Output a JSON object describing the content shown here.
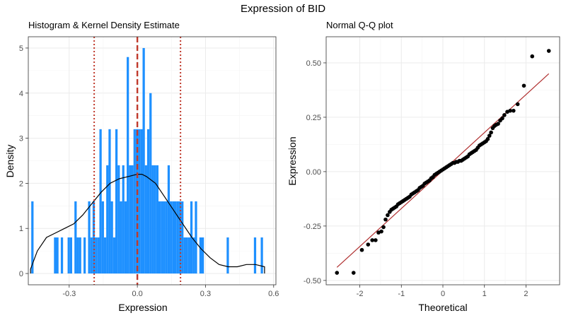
{
  "figure": {
    "title": "Expression of BID"
  },
  "chart_data": [
    {
      "type": "bar",
      "title": "Histogram & Kernel Density Estimate",
      "xlabel": "Expression",
      "ylabel": "Density",
      "xlim": [
        -0.48,
        0.61
      ],
      "ylim": [
        -0.25,
        5.25
      ],
      "xticks": [
        -0.3,
        0.0,
        0.3,
        0.6
      ],
      "xtick_labels": [
        "-0.3",
        "0.0",
        "0.3",
        "0.6"
      ],
      "yticks": [
        0,
        1,
        2,
        3,
        4,
        5
      ],
      "ytick_labels": [
        "0",
        "1",
        "2",
        "3",
        "4",
        "5"
      ],
      "grid": true,
      "bin_width": 0.0101,
      "bar_color": "#1E90FF",
      "bins": [
        {
          "x": -0.467,
          "density": 1.6
        },
        {
          "x": -0.367,
          "density": 0.8
        },
        {
          "x": -0.357,
          "density": 0.8
        },
        {
          "x": -0.337,
          "density": 0.8
        },
        {
          "x": -0.307,
          "density": 0.8
        },
        {
          "x": -0.297,
          "density": 0.8
        },
        {
          "x": -0.277,
          "density": 1.6
        },
        {
          "x": -0.267,
          "density": 0.8
        },
        {
          "x": -0.257,
          "density": 0.8
        },
        {
          "x": -0.237,
          "density": 0.8
        },
        {
          "x": -0.217,
          "density": 1.6
        },
        {
          "x": -0.207,
          "density": 0.8
        },
        {
          "x": -0.197,
          "density": 1.6
        },
        {
          "x": -0.187,
          "density": 0.8
        },
        {
          "x": -0.177,
          "density": 0.8
        },
        {
          "x": -0.167,
          "density": 3.2
        },
        {
          "x": -0.157,
          "density": 1.6
        },
        {
          "x": -0.147,
          "density": 0.8
        },
        {
          "x": -0.137,
          "density": 2.4
        },
        {
          "x": -0.127,
          "density": 3.2
        },
        {
          "x": -0.117,
          "density": 1.6
        },
        {
          "x": -0.107,
          "density": 0.8
        },
        {
          "x": -0.097,
          "density": 3.2
        },
        {
          "x": -0.087,
          "density": 2.4
        },
        {
          "x": -0.077,
          "density": 1.6
        },
        {
          "x": -0.067,
          "density": 2.4
        },
        {
          "x": -0.057,
          "density": 1.6
        },
        {
          "x": -0.047,
          "density": 4.8
        },
        {
          "x": -0.037,
          "density": 2.4
        },
        {
          "x": -0.027,
          "density": 2.4
        },
        {
          "x": -0.017,
          "density": 3.2
        },
        {
          "x": -0.007,
          "density": 3.2
        },
        {
          "x": 0.003,
          "density": 3.2
        },
        {
          "x": 0.013,
          "density": 3.2
        },
        {
          "x": 0.023,
          "density": 5.0
        },
        {
          "x": 0.033,
          "density": 2.4
        },
        {
          "x": 0.043,
          "density": 3.2
        },
        {
          "x": 0.053,
          "density": 4.0
        },
        {
          "x": 0.063,
          "density": 2.4
        },
        {
          "x": 0.073,
          "density": 2.4
        },
        {
          "x": 0.083,
          "density": 2.4
        },
        {
          "x": 0.093,
          "density": 1.6
        },
        {
          "x": 0.103,
          "density": 1.6
        },
        {
          "x": 0.113,
          "density": 1.6
        },
        {
          "x": 0.123,
          "density": 1.6
        },
        {
          "x": 0.133,
          "density": 2.4
        },
        {
          "x": 0.143,
          "density": 1.6
        },
        {
          "x": 0.153,
          "density": 1.6
        },
        {
          "x": 0.163,
          "density": 1.6
        },
        {
          "x": 0.173,
          "density": 1.6
        },
        {
          "x": 0.183,
          "density": 1.6
        },
        {
          "x": 0.193,
          "density": 1.6
        },
        {
          "x": 0.203,
          "density": 0.8
        },
        {
          "x": 0.213,
          "density": 0.8
        },
        {
          "x": 0.223,
          "density": 0.8
        },
        {
          "x": 0.233,
          "density": 1.6
        },
        {
          "x": 0.243,
          "density": 0.8
        },
        {
          "x": 0.253,
          "density": 1.6
        },
        {
          "x": 0.273,
          "density": 0.8
        },
        {
          "x": 0.283,
          "density": 0.8
        },
        {
          "x": 0.393,
          "density": 0.8
        },
        {
          "x": 0.513,
          "density": 0.8
        },
        {
          "x": 0.543,
          "density": 0.8
        }
      ],
      "kde": {
        "x": [
          -0.47,
          -0.44,
          -0.4,
          -0.36,
          -0.32,
          -0.28,
          -0.24,
          -0.2,
          -0.16,
          -0.12,
          -0.08,
          -0.04,
          0.0,
          0.02,
          0.04,
          0.08,
          0.12,
          0.16,
          0.2,
          0.24,
          0.28,
          0.32,
          0.36,
          0.4,
          0.44,
          0.48,
          0.52,
          0.56
        ],
        "y": [
          0.1,
          0.5,
          0.8,
          0.9,
          1.0,
          1.1,
          1.3,
          1.55,
          1.8,
          2.0,
          2.1,
          2.15,
          2.2,
          2.2,
          2.15,
          2.0,
          1.7,
          1.4,
          1.1,
          0.8,
          0.55,
          0.35,
          0.2,
          0.15,
          0.15,
          0.2,
          0.2,
          0.15
        ],
        "color": "#000000"
      },
      "reference_lines": [
        {
          "x": 0.0,
          "style": "dashed",
          "color": "#C0392B"
        },
        {
          "x": -0.19,
          "style": "dotted",
          "color": "#C0392B"
        },
        {
          "x": 0.19,
          "style": "dotted",
          "color": "#C0392B"
        }
      ]
    },
    {
      "type": "scatter",
      "title": "Normal Q-Q plot",
      "xlabel": "Theoretical",
      "ylabel": "Expression",
      "xlim": [
        -2.81,
        2.81
      ],
      "ylim": [
        -0.52,
        0.62
      ],
      "xticks": [
        -2,
        -1,
        0,
        1,
        2
      ],
      "xtick_labels": [
        "-2",
        "-1",
        "0",
        "1",
        "2"
      ],
      "yticks": [
        -0.5,
        -0.25,
        0.0,
        0.25,
        0.5
      ],
      "ytick_labels": [
        "-0.50",
        "-0.25",
        "0.00",
        "0.25",
        "0.50"
      ],
      "grid": true,
      "point_color": "#000000",
      "line_color": "#B03030",
      "ref_line": {
        "x": [
          -2.55,
          2.55
        ],
        "y": [
          -0.44,
          0.45
        ]
      },
      "points": [
        [
          -2.55,
          -0.465
        ],
        [
          -2.15,
          -0.465
        ],
        [
          -1.95,
          -0.36
        ],
        [
          -1.8,
          -0.335
        ],
        [
          -1.7,
          -0.315
        ],
        [
          -1.62,
          -0.315
        ],
        [
          -1.55,
          -0.28
        ],
        [
          -1.48,
          -0.275
        ],
        [
          -1.43,
          -0.255
        ],
        [
          -1.38,
          -0.22
        ],
        [
          -1.33,
          -0.2
        ],
        [
          -1.28,
          -0.185
        ],
        [
          -1.24,
          -0.175
        ],
        [
          -1.2,
          -0.17
        ],
        [
          -1.16,
          -0.165
        ],
        [
          -1.12,
          -0.16
        ],
        [
          -1.08,
          -0.15
        ],
        [
          -1.04,
          -0.145
        ],
        [
          -1.0,
          -0.14
        ],
        [
          -0.96,
          -0.135
        ],
        [
          -0.92,
          -0.13
        ],
        [
          -0.88,
          -0.125
        ],
        [
          -0.84,
          -0.12
        ],
        [
          -0.8,
          -0.115
        ],
        [
          -0.76,
          -0.105
        ],
        [
          -0.72,
          -0.1
        ],
        [
          -0.68,
          -0.095
        ],
        [
          -0.64,
          -0.09
        ],
        [
          -0.6,
          -0.085
        ],
        [
          -0.56,
          -0.075
        ],
        [
          -0.52,
          -0.07
        ],
        [
          -0.48,
          -0.065
        ],
        [
          -0.44,
          -0.055
        ],
        [
          -0.4,
          -0.05
        ],
        [
          -0.36,
          -0.045
        ],
        [
          -0.32,
          -0.04
        ],
        [
          -0.28,
          -0.03
        ],
        [
          -0.24,
          -0.025
        ],
        [
          -0.2,
          -0.015
        ],
        [
          -0.16,
          -0.01
        ],
        [
          -0.12,
          -0.005
        ],
        [
          -0.08,
          0.0
        ],
        [
          -0.04,
          0.005
        ],
        [
          0.0,
          0.01
        ],
        [
          0.04,
          0.015
        ],
        [
          0.08,
          0.02
        ],
        [
          0.12,
          0.025
        ],
        [
          0.16,
          0.03
        ],
        [
          0.2,
          0.035
        ],
        [
          0.24,
          0.04
        ],
        [
          0.28,
          0.04
        ],
        [
          0.32,
          0.045
        ],
        [
          0.36,
          0.045
        ],
        [
          0.4,
          0.05
        ],
        [
          0.44,
          0.05
        ],
        [
          0.48,
          0.055
        ],
        [
          0.52,
          0.06
        ],
        [
          0.56,
          0.065
        ],
        [
          0.6,
          0.07
        ],
        [
          0.64,
          0.08
        ],
        [
          0.68,
          0.085
        ],
        [
          0.72,
          0.09
        ],
        [
          0.76,
          0.095
        ],
        [
          0.8,
          0.1
        ],
        [
          0.84,
          0.11
        ],
        [
          0.88,
          0.12
        ],
        [
          0.92,
          0.125
        ],
        [
          0.96,
          0.13
        ],
        [
          1.0,
          0.135
        ],
        [
          1.04,
          0.14
        ],
        [
          1.08,
          0.15
        ],
        [
          1.12,
          0.165
        ],
        [
          1.16,
          0.18
        ],
        [
          1.2,
          0.2
        ],
        [
          1.24,
          0.21
        ],
        [
          1.28,
          0.215
        ],
        [
          1.33,
          0.22
        ],
        [
          1.38,
          0.235
        ],
        [
          1.43,
          0.245
        ],
        [
          1.48,
          0.26
        ],
        [
          1.55,
          0.275
        ],
        [
          1.62,
          0.28
        ],
        [
          1.7,
          0.28
        ],
        [
          1.8,
          0.31
        ],
        [
          1.95,
          0.395
        ],
        [
          2.15,
          0.53
        ],
        [
          2.55,
          0.555
        ]
      ]
    }
  ]
}
